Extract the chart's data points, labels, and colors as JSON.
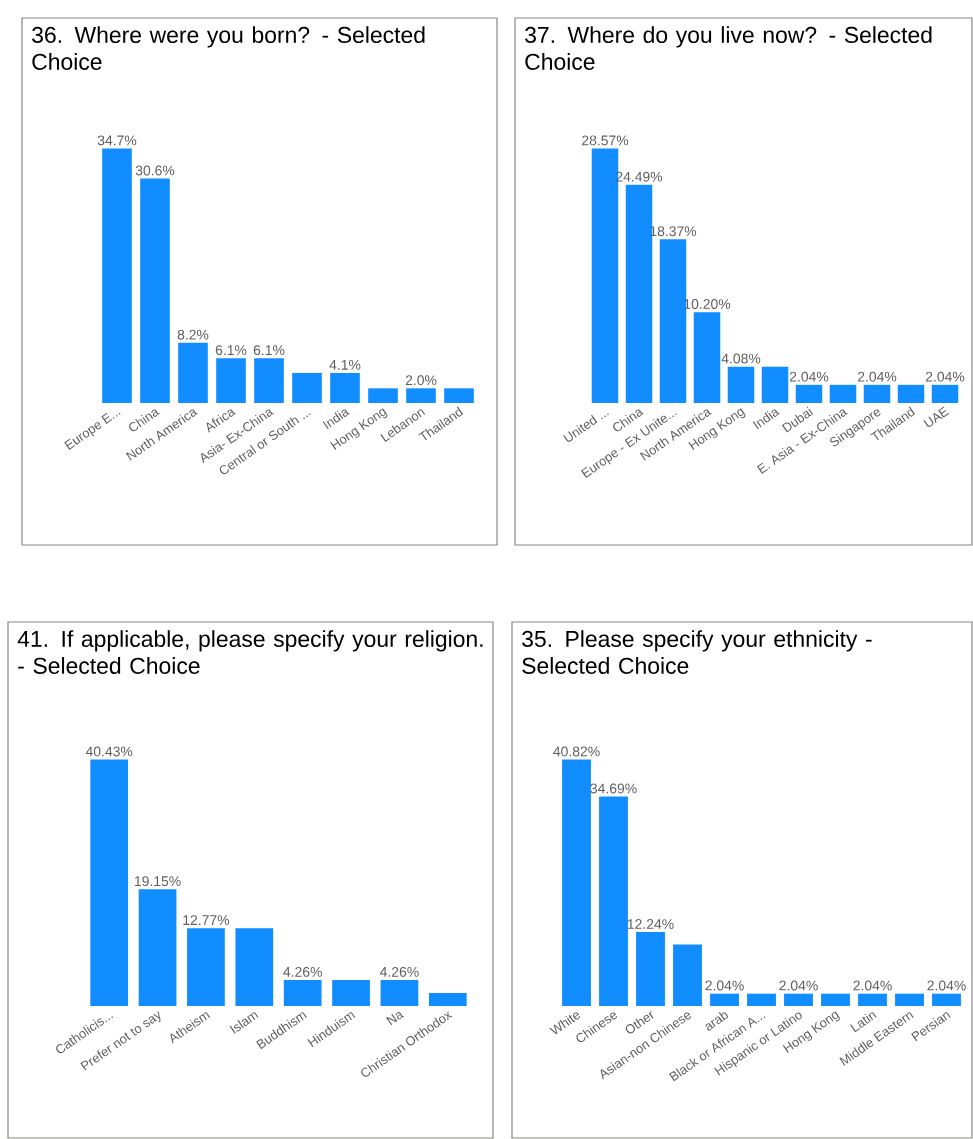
{
  "chart_data": [
    {
      "type": "bar",
      "title": "36. Where were you born? - Selected Choice",
      "color": "#118dff",
      "categories": [
        "Europe E...",
        "China",
        "North America",
        "Africa",
        "Asia- Ex-China",
        "Central or South ...",
        "India",
        "Hong Kong",
        "Lebanon",
        "Thailand"
      ],
      "values": [
        34.7,
        30.6,
        8.2,
        6.1,
        6.1,
        4.1,
        4.1,
        2.0,
        2.0,
        2.0
      ],
      "value_labels": [
        "34.7%",
        "30.6%",
        "8.2%",
        "6.1%",
        "6.1%",
        null,
        "4.1%",
        null,
        "2.0%",
        null
      ]
    },
    {
      "type": "bar",
      "title": "37. Where do you live now? - Selected Choice",
      "color": "#118dff",
      "categories": [
        "United ...",
        "China",
        "Europe - Ex Unite...",
        "North America",
        "Hong Kong",
        "India",
        "Dubai",
        "E. Asia - Ex-China",
        "Singapore",
        "Thailand",
        "UAE"
      ],
      "values": [
        28.57,
        24.49,
        18.37,
        10.2,
        4.08,
        4.08,
        2.04,
        2.04,
        2.04,
        2.04,
        2.04
      ],
      "value_labels": [
        "28.57%",
        "24.49%",
        "18.37%",
        "10.20%",
        "4.08%",
        null,
        "2.04%",
        null,
        "2.04%",
        null,
        "2.04%"
      ]
    },
    {
      "type": "bar",
      "title": "41. If applicable, please specify your religion. - Selected Choice",
      "color": "#118dff",
      "categories": [
        "Catholicis...",
        "Prefer not to say",
        "Atheism",
        "Islam",
        "Buddhism",
        "Hinduism",
        "Na",
        "Christian Orthodox"
      ],
      "values": [
        40.43,
        19.15,
        12.77,
        12.77,
        4.26,
        4.26,
        4.26,
        2.13
      ],
      "value_labels": [
        "40.43%",
        "19.15%",
        "12.77%",
        null,
        "4.26%",
        null,
        "4.26%",
        null
      ]
    },
    {
      "type": "bar",
      "title": "35. Please specify your ethnicity - Selected Choice",
      "color": "#118dff",
      "categories": [
        "White",
        "Chinese",
        "Other",
        "Asian-non Chinese",
        "arab",
        "Black or African A...",
        "Hispanic or Latino",
        "Hong Kong",
        "Latin",
        "Middle Eastern",
        "Persian"
      ],
      "values": [
        40.82,
        34.69,
        12.24,
        10.2,
        2.04,
        2.04,
        2.04,
        2.04,
        2.04,
        2.04,
        2.04
      ],
      "value_labels": [
        "40.82%",
        "34.69%",
        "12.24%",
        null,
        "2.04%",
        null,
        "2.04%",
        null,
        "2.04%",
        null,
        "2.04%"
      ]
    }
  ]
}
